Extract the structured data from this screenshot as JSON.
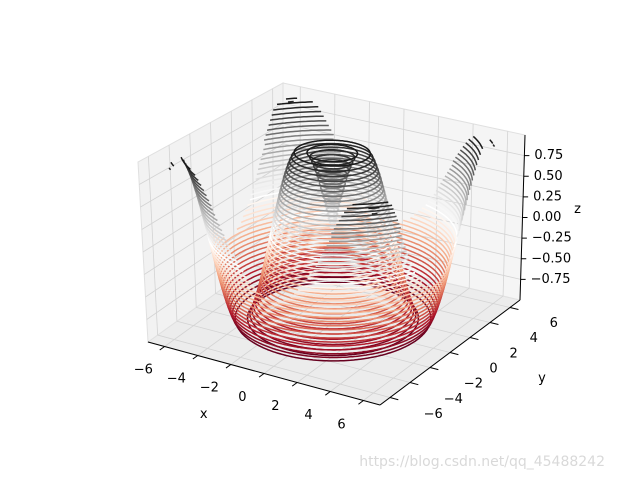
{
  "chart_data": {
    "type": "contour3d",
    "colormap": "RdGy",
    "xlabel": "x",
    "ylabel": "y",
    "zlabel": "z",
    "xlim": [
      -7,
      7
    ],
    "ylim": [
      -7,
      7
    ],
    "zlim": [
      -1,
      1
    ],
    "xticks": [
      {
        "value": -6,
        "label": "−6"
      },
      {
        "value": -4,
        "label": "−4"
      },
      {
        "value": -2,
        "label": "−2"
      },
      0,
      2,
      4,
      6
    ],
    "yticks": [
      {
        "value": -6,
        "label": "−6"
      },
      {
        "value": -4,
        "label": "−4"
      },
      {
        "value": -2,
        "label": "−2"
      },
      0,
      2,
      4,
      6
    ],
    "zticks": [
      {
        "value": -0.75,
        "label": "−0.75"
      },
      {
        "value": -0.5,
        "label": "−0.50"
      },
      {
        "value": -0.25,
        "label": "−0.25"
      },
      {
        "value": 0,
        "label": "0.00"
      },
      0.25,
      {
        "value": 0.5,
        "label": "0.50"
      },
      0.75
    ],
    "levels": [
      -0.95,
      -0.9,
      -0.85,
      -0.8,
      -0.75,
      -0.7,
      -0.65,
      -0.6,
      -0.55,
      -0.5,
      -0.45,
      -0.4,
      -0.35,
      -0.3,
      -0.25,
      -0.2,
      -0.15,
      -0.1,
      -0.05,
      0,
      0.05,
      0.1,
      0.15,
      0.2,
      0.25,
      0.3,
      0.35,
      0.4,
      0.45,
      0.5,
      0.55,
      0.6,
      0.65,
      0.7,
      0.75,
      0.8,
      0.85,
      0.9,
      0.95
    ],
    "grid": true,
    "watermark": "https://blog.csdn.net/qq_45488242"
  }
}
